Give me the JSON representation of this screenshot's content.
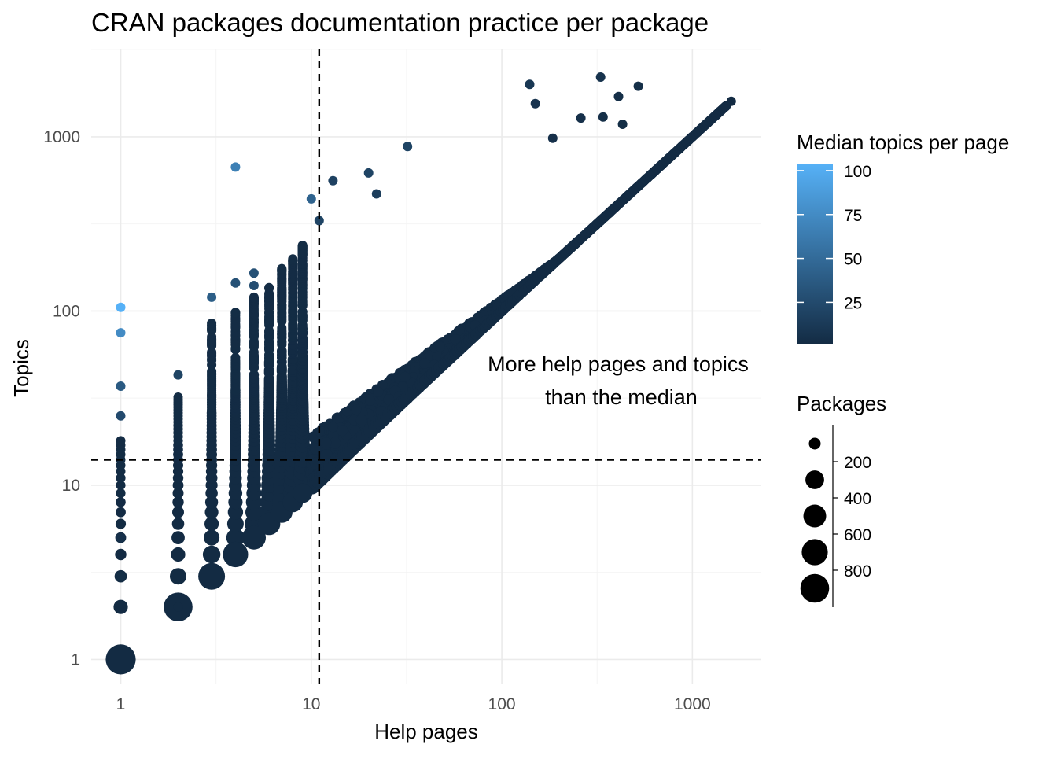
{
  "chart_data": {
    "type": "scatter",
    "title": "CRAN packages documentation practice per package",
    "xlabel": "Help pages",
    "ylabel": "Topics",
    "x_scale": "log10",
    "y_scale": "log10",
    "xlim": [
      0.7,
      2300
    ],
    "ylim": [
      0.72,
      3200
    ],
    "x_ticks": [
      1,
      10,
      100,
      1000
    ],
    "x_tick_labels": [
      "1",
      "10",
      "100",
      "1000"
    ],
    "y_ticks": [
      1,
      10,
      100,
      1000
    ],
    "y_tick_labels": [
      "1",
      "10",
      "100",
      "1000"
    ],
    "grid": true,
    "median_lines": {
      "x": 11,
      "y": 14
    },
    "annotation": [
      "More help pages and topics",
      "than the median"
    ],
    "color_legend": {
      "title": "Median topics per page",
      "breaks": [
        25,
        50,
        75,
        100
      ],
      "labels": [
        "25",
        "50",
        "75",
        "100"
      ],
      "range": [
        1,
        104
      ],
      "low_color": "#132B43",
      "high_color": "#56B1F7"
    },
    "size_legend": {
      "title": "Packages",
      "breaks": [
        200,
        400,
        600,
        800
      ],
      "labels": [
        "200",
        "400",
        "600",
        "800"
      ],
      "max": 960
    },
    "point_color": "#132B43",
    "notable_points": [
      {
        "x": 1,
        "y": 1,
        "n": 900,
        "median": 1
      },
      {
        "x": 2,
        "y": 2,
        "n": 800,
        "median": 1
      },
      {
        "x": 3,
        "y": 3,
        "n": 650,
        "median": 1
      },
      {
        "x": 4,
        "y": 4,
        "n": 550,
        "median": 1
      },
      {
        "x": 5,
        "y": 5,
        "n": 450,
        "median": 1
      },
      {
        "x": 6,
        "y": 6,
        "n": 380,
        "median": 1
      },
      {
        "x": 7,
        "y": 7,
        "n": 320,
        "median": 1
      },
      {
        "x": 8,
        "y": 8,
        "n": 270,
        "median": 1
      },
      {
        "x": 9,
        "y": 9,
        "n": 230,
        "median": 1
      },
      {
        "x": 1,
        "y": 105,
        "n": 1,
        "median": 104
      },
      {
        "x": 1,
        "y": 75,
        "n": 1,
        "median": 75
      },
      {
        "x": 1,
        "y": 37,
        "n": 1,
        "median": 37
      },
      {
        "x": 1,
        "y": 25,
        "n": 1,
        "median": 25
      },
      {
        "x": 4,
        "y": 670,
        "n": 1,
        "median": 66
      },
      {
        "x": 10,
        "y": 440,
        "n": 1,
        "median": 44
      },
      {
        "x": 3,
        "y": 120,
        "n": 1,
        "median": 40
      },
      {
        "x": 5,
        "y": 140,
        "n": 1,
        "median": 28
      },
      {
        "x": 2,
        "y": 43,
        "n": 1,
        "median": 20
      },
      {
        "x": 4,
        "y": 145,
        "n": 1,
        "median": 30
      },
      {
        "x": 5,
        "y": 165,
        "n": 1,
        "median": 30
      },
      {
        "x": 11,
        "y": 330,
        "n": 1,
        "median": 20
      },
      {
        "x": 32,
        "y": 880,
        "n": 1,
        "median": 20
      },
      {
        "x": 140,
        "y": 2000,
        "n": 1,
        "median": 10
      },
      {
        "x": 150,
        "y": 1550,
        "n": 1,
        "median": 8
      },
      {
        "x": 330,
        "y": 2200,
        "n": 1,
        "median": 7
      },
      {
        "x": 520,
        "y": 1950,
        "n": 1,
        "median": 4
      },
      {
        "x": 410,
        "y": 1700,
        "n": 1,
        "median": 4
      },
      {
        "x": 260,
        "y": 1280,
        "n": 1,
        "median": 5
      },
      {
        "x": 340,
        "y": 1300,
        "n": 1,
        "median": 4
      },
      {
        "x": 430,
        "y": 1180,
        "n": 1,
        "median": 3
      },
      {
        "x": 185,
        "y": 980,
        "n": 1,
        "median": 5
      },
      {
        "x": 1600,
        "y": 1600,
        "n": 1,
        "median": 1
      },
      {
        "x": 20,
        "y": 620,
        "n": 1,
        "median": 20
      },
      {
        "x": 13,
        "y": 560,
        "n": 1,
        "median": 18
      },
      {
        "x": 22,
        "y": 470,
        "n": 1,
        "median": 15
      },
      {
        "x": 2,
        "y": 2,
        "n": 1,
        "median": 1
      },
      {
        "x": 1,
        "y": 3,
        "n": 1,
        "median": 3
      },
      {
        "x": 1,
        "y": 5,
        "n": 1,
        "median": 5
      }
    ]
  }
}
